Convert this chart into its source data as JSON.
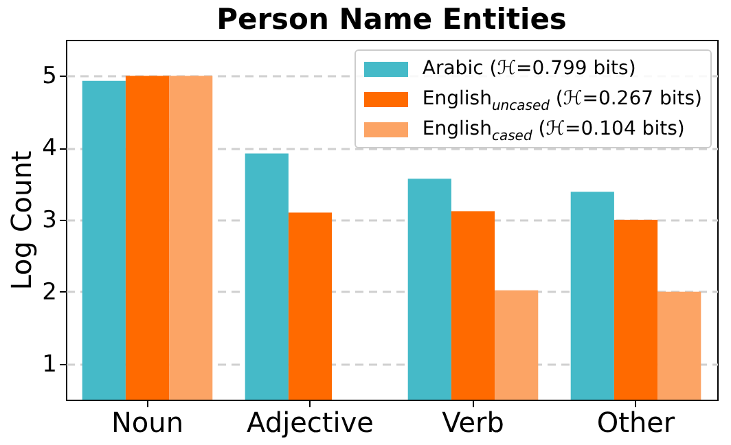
{
  "chart_data": {
    "type": "bar",
    "title": "Person Name Entities",
    "ylabel": "Log Count",
    "categories": [
      "Noun",
      "Adjective",
      "Verb",
      "Other"
    ],
    "series": [
      {
        "name": "Arabic (ℋ=0.799 bits)",
        "color": "#45bac8",
        "values": [
          4.93,
          3.92,
          3.57,
          3.39
        ]
      },
      {
        "name": "English$_{uncased}$ (ℋ=0.267 bits)",
        "color": "#ff6a00",
        "values": [
          5.0,
          3.1,
          3.12,
          3.0
        ]
      },
      {
        "name": "English$_{cased}$ (ℋ=0.104 bits)",
        "color": "#fca465",
        "values": [
          5.0,
          null,
          2.02,
          2.0
        ]
      }
    ],
    "ylim": [
      0.5,
      5.5
    ],
    "yticks": [
      1,
      2,
      3,
      4,
      5
    ],
    "grid": "y",
    "legend": "top right"
  }
}
